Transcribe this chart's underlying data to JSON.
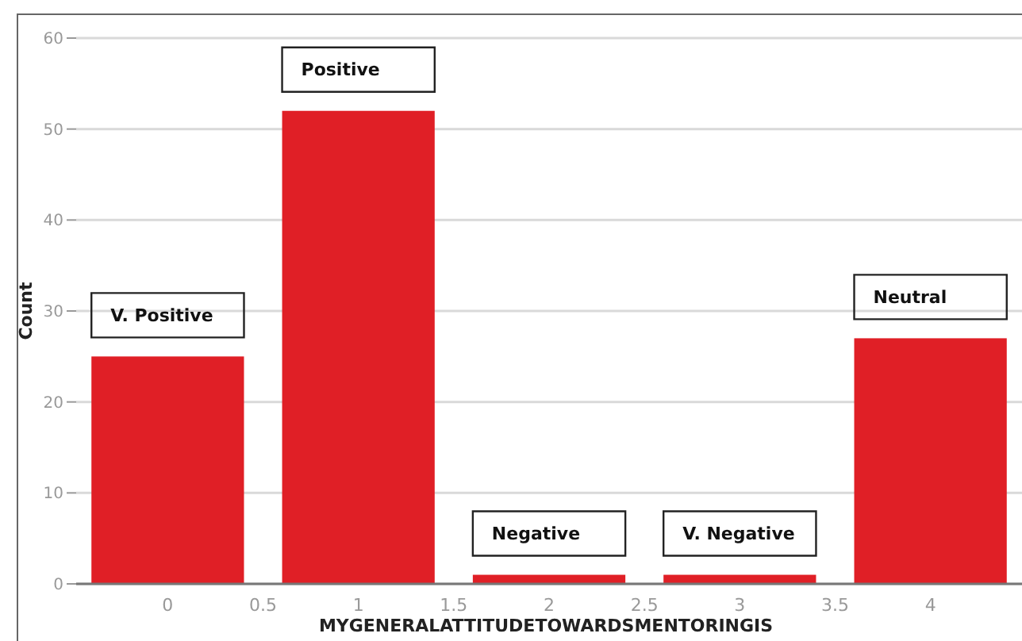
{
  "chart_data": {
    "type": "bar",
    "xlabel": "MYGENERALATTITUDETOWARDSMENTORINGIS",
    "ylabel": "Count",
    "x": [
      0,
      1,
      2,
      3,
      4
    ],
    "values": [
      25,
      52,
      1,
      1,
      27
    ],
    "color": "#e01f26",
    "xlim": [
      -0.48,
      4.48
    ],
    "xticks": [
      0,
      0.5,
      1,
      1.5,
      2,
      2.5,
      3,
      3.5,
      4
    ],
    "ylim": [
      0,
      60
    ],
    "yticks": [
      0,
      10,
      20,
      30,
      40,
      50,
      60
    ],
    "grid": "y",
    "annotations": [
      {
        "text": "V. Positive",
        "x": 0,
        "y": 25
      },
      {
        "text": "Positive",
        "x": 1,
        "y": 52
      },
      {
        "text": "Negative",
        "x": 2,
        "y": 1
      },
      {
        "text": "V. Negative",
        "x": 3,
        "y": 1
      },
      {
        "text": "Neutral",
        "x": 4,
        "y": 27
      }
    ]
  }
}
